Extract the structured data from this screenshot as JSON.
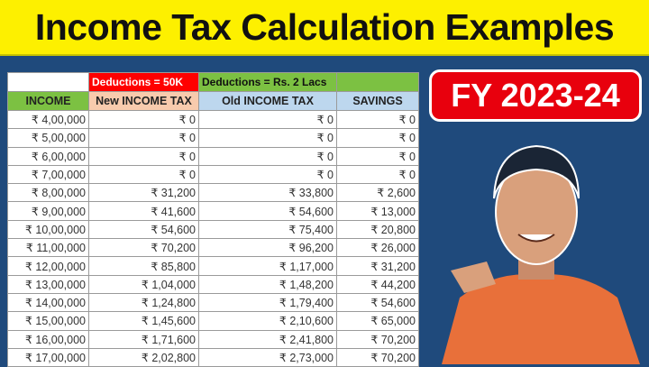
{
  "title": "Income Tax Calculation Examples",
  "badge": "FY 2023-24",
  "table": {
    "group_headers": [
      "",
      "Deductions = 50K",
      "Deductions = Rs. 2 Lacs",
      ""
    ],
    "columns": [
      "INCOME",
      "New INCOME TAX",
      "Old INCOME TAX",
      "SAVINGS"
    ],
    "rows": [
      [
        "₹ 4,00,000",
        "₹ 0",
        "₹ 0",
        "₹ 0"
      ],
      [
        "₹ 5,00,000",
        "₹ 0",
        "₹ 0",
        "₹ 0"
      ],
      [
        "₹ 6,00,000",
        "₹ 0",
        "₹ 0",
        "₹ 0"
      ],
      [
        "₹ 7,00,000",
        "₹ 0",
        "₹ 0",
        "₹ 0"
      ],
      [
        "₹ 8,00,000",
        "₹ 31,200",
        "₹ 33,800",
        "₹ 2,600"
      ],
      [
        "₹ 9,00,000",
        "₹ 41,600",
        "₹ 54,600",
        "₹ 13,000"
      ],
      [
        "₹ 10,00,000",
        "₹ 54,600",
        "₹ 75,400",
        "₹ 20,800"
      ],
      [
        "₹ 11,00,000",
        "₹ 70,200",
        "₹ 96,200",
        "₹ 26,000"
      ],
      [
        "₹ 12,00,000",
        "₹ 85,800",
        "₹ 1,17,000",
        "₹ 31,200"
      ],
      [
        "₹ 13,00,000",
        "₹ 1,04,000",
        "₹ 1,48,200",
        "₹ 44,200"
      ],
      [
        "₹ 14,00,000",
        "₹ 1,24,800",
        "₹ 1,79,400",
        "₹ 54,600"
      ],
      [
        "₹ 15,00,000",
        "₹ 1,45,600",
        "₹ 2,10,600",
        "₹ 65,000"
      ],
      [
        "₹ 16,00,000",
        "₹ 1,71,600",
        "₹ 2,41,800",
        "₹ 70,200"
      ],
      [
        "₹ 17,00,000",
        "₹ 2,02,800",
        "₹ 2,73,000",
        "₹ 70,200"
      ]
    ]
  },
  "colors": {
    "title_bg": "#fdf000",
    "background": "#1f4a7c",
    "badge_bg": "#e8000d",
    "group_red": "#ff0000",
    "group_green": "#7cc142",
    "header_income": "#7cc142",
    "header_new": "#f8cbad",
    "header_old": "#bdd7ee",
    "shirt": "#e8703a"
  }
}
